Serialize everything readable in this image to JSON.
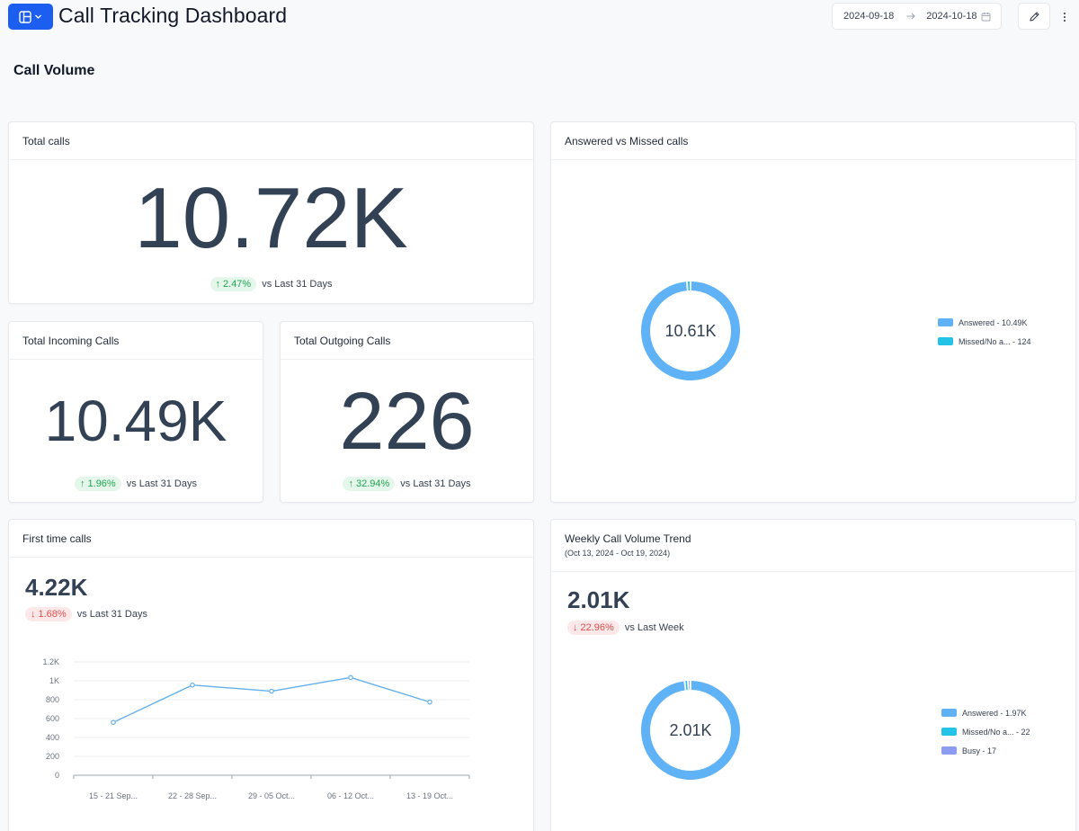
{
  "header": {
    "title": "Call Tracking Dashboard",
    "date_start": "2024-09-18",
    "date_end": "2024-10-18",
    "accent_color": "#1b5ef0"
  },
  "section": {
    "title": "Call Volume"
  },
  "total_calls": {
    "title": "Total calls",
    "value": "10.72K",
    "change": "2.47%",
    "direction": "up",
    "compare": "vs Last 31 Days"
  },
  "incoming_calls": {
    "title": "Total Incoming Calls",
    "value": "10.49K",
    "change": "1.96%",
    "direction": "up",
    "compare": "vs Last 31 Days"
  },
  "outgoing_calls": {
    "title": "Total Outgoing Calls",
    "value": "226",
    "change": "32.94%",
    "direction": "up",
    "compare": "vs Last 31 Days"
  },
  "answered_vs_missed": {
    "title": "Answered vs Missed calls",
    "center_label": "10.61K",
    "legend": [
      {
        "label": "Answered - 10.49K",
        "color": "#5eb2f5"
      },
      {
        "label": "Missed/No a... - 124",
        "color": "#22c3e6"
      }
    ]
  },
  "first_time_calls": {
    "title": "First time calls",
    "value": "4.22K",
    "change": "1.68%",
    "direction": "down",
    "compare": "vs Last 31 Days"
  },
  "weekly_trend": {
    "title": "Weekly Call Volume Trend",
    "subtitle": "(Oct 13, 2024 - Oct 19, 2024)",
    "value": "2.01K",
    "change": "22.96%",
    "direction": "down",
    "compare": "vs Last Week",
    "center_label": "2.01K",
    "legend": [
      {
        "label": "Answered - 1.97K",
        "color": "#5eb2f5"
      },
      {
        "label": "Missed/No a... - 22",
        "color": "#22c3e6"
      },
      {
        "label": "Busy - 17",
        "color": "#8c9cf2"
      }
    ]
  },
  "chart_data": [
    {
      "type": "line",
      "title": "",
      "xlabel": "",
      "ylabel": "",
      "categories": [
        "15 - 21 Sep...",
        "22 - 28 Sep...",
        "29 - 05 Oct...",
        "06 - 12 Oct...",
        "13 - 19 Oct..."
      ],
      "y_ticks": [
        "0",
        "200",
        "400",
        "600",
        "800",
        "1K",
        "1.2K"
      ],
      "ylim": [
        0,
        1200
      ],
      "series": [
        {
          "values": [
            560,
            955,
            890,
            1035,
            775
          ],
          "color": "#64b0ec"
        }
      ],
      "grid": true
    },
    {
      "type": "pie",
      "title": "",
      "categories": [
        "Answered",
        "Missed/No a..."
      ],
      "values": [
        10490,
        124
      ],
      "colors": [
        "#5eb2f5",
        "#22c3e6"
      ]
    },
    {
      "type": "pie",
      "title": "",
      "categories": [
        "Answered",
        "Missed/No a...",
        "Busy"
      ],
      "values": [
        1970,
        22,
        17
      ],
      "colors": [
        "#5eb2f5",
        "#22c3e6",
        "#8c9cf2"
      ]
    }
  ]
}
